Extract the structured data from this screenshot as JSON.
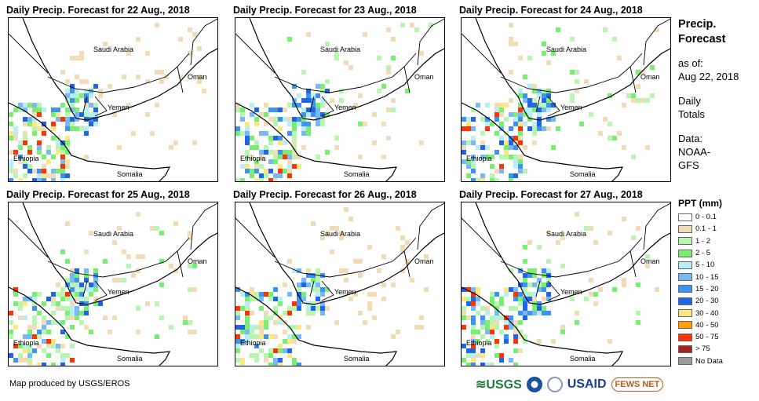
{
  "panels": [
    {
      "title": "Daily Precip. Forecast for 22 Aug., 2018"
    },
    {
      "title": "Daily Precip. Forecast for 23 Aug., 2018"
    },
    {
      "title": "Daily Precip. Forecast for 24 Aug., 2018"
    },
    {
      "title": "Daily Precip. Forecast for 25 Aug., 2018"
    },
    {
      "title": "Daily Precip. Forecast for 26 Aug., 2018"
    },
    {
      "title": "Daily Precip. Forecast for 27 Aug., 2018"
    }
  ],
  "map_labels": {
    "saudi": "Saudi Arabia",
    "oman": "Oman",
    "yemen": "Yemen",
    "ethiopia": "Ethiopia",
    "somalia": "Somalia"
  },
  "side": {
    "title1": "Precip.",
    "title2": "Forecast",
    "asof1": "as of:",
    "asof2": "Aug 22, 2018",
    "daily1": "Daily",
    "daily2": "Totals",
    "data1": "Data:",
    "data2": "NOAA-",
    "data3": "GFS"
  },
  "legend": {
    "title": "PPT (mm)",
    "items": [
      {
        "label": "0 - 0.1",
        "color": "#ffffff"
      },
      {
        "label": "0.1 - 1",
        "color": "#f2dcb8"
      },
      {
        "label": "1 - 2",
        "color": "#b8f5b0"
      },
      {
        "label": "2 - 5",
        "color": "#78ef70"
      },
      {
        "label": "5 - 10",
        "color": "#b8eef8"
      },
      {
        "label": "10 - 15",
        "color": "#78b8f5"
      },
      {
        "label": "15 - 20",
        "color": "#3f93f0"
      },
      {
        "label": "20 - 30",
        "color": "#1e66e6"
      },
      {
        "label": "30 - 40",
        "color": "#ffe680"
      },
      {
        "label": "40 - 50",
        "color": "#ff9f00"
      },
      {
        "label": "50 - 75",
        "color": "#ff3300"
      },
      {
        "label": "> 75",
        "color": "#a52020"
      },
      {
        "label": "No Data",
        "color": "#9c9c9c"
      }
    ]
  },
  "credit": "Map produced by USGS/EROS",
  "logos": {
    "usgs": "USGS",
    "usaid": "USAID",
    "fews": "FEWS NET"
  }
}
